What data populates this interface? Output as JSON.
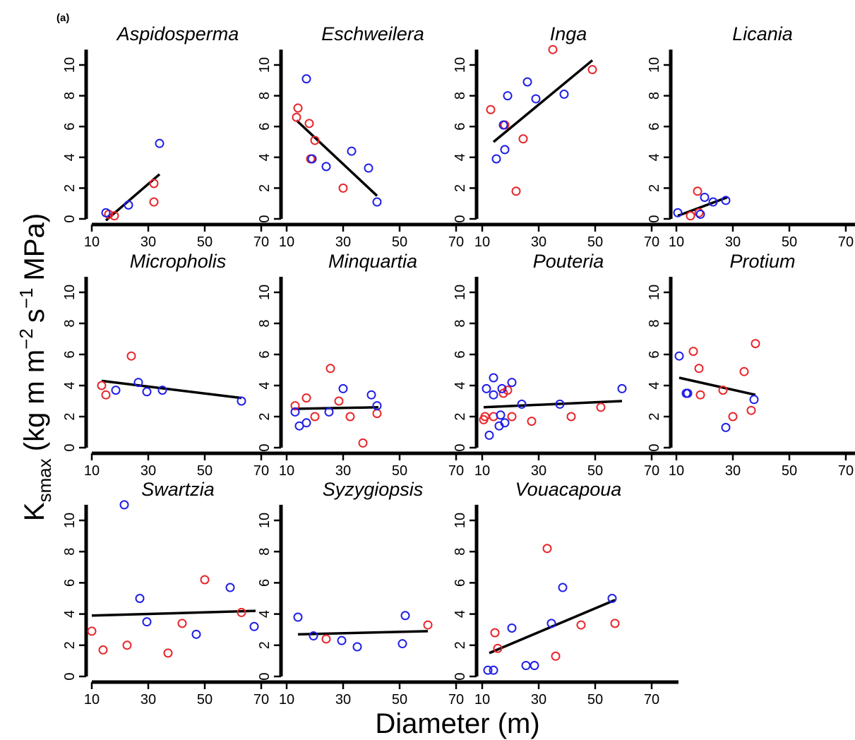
{
  "figure": {
    "panel_tag": "(a)",
    "xlabel": "Diameter (m)",
    "ylabel_main": "K",
    "ylabel_sub": "smax",
    "ylabel_units": "(kg m m",
    "ylabel_sup1": "−2",
    "ylabel_s": "s",
    "ylabel_sup2": "−1",
    "ylabel_tail": "MPa)"
  },
  "colors": {
    "red_series": "#e8262b",
    "blue_series": "#1f1fe6",
    "fit_line": "#000000",
    "axes": "#000000"
  },
  "chart_data": [
    {
      "type": "scatter",
      "title": "Aspidosperma",
      "xlim": [
        10,
        70
      ],
      "ylim": [
        0,
        11
      ],
      "xticks": [
        10,
        30,
        50,
        70
      ],
      "yticks": [
        0,
        2,
        4,
        6,
        8,
        10
      ],
      "series": [
        {
          "color": "red",
          "points": [
            [
              16,
              0.3
            ],
            [
              18,
              0.2
            ],
            [
              32,
              2.3
            ],
            [
              32,
              1.1
            ]
          ]
        },
        {
          "color": "blue",
          "points": [
            [
              15,
              0.4
            ],
            [
              23,
              0.9
            ],
            [
              34,
              4.9
            ]
          ]
        }
      ],
      "fit": [
        [
          15,
          -0.1
        ],
        [
          34,
          2.9
        ]
      ]
    },
    {
      "type": "scatter",
      "title": "Eschweilera",
      "xlim": [
        10,
        70
      ],
      "ylim": [
        0,
        11
      ],
      "xticks": [
        10,
        30,
        50,
        70
      ],
      "yticks": [
        0,
        2,
        4,
        6,
        8,
        10
      ],
      "series": [
        {
          "color": "red",
          "points": [
            [
              13.5,
              6.6
            ],
            [
              14,
              7.2
            ],
            [
              18,
              6.2
            ],
            [
              20,
              5.1
            ],
            [
              18.5,
              3.9
            ],
            [
              30,
              2.0
            ]
          ]
        },
        {
          "color": "blue",
          "points": [
            [
              17,
              9.1
            ],
            [
              19,
              3.9
            ],
            [
              24,
              3.4
            ],
            [
              33,
              4.4
            ],
            [
              39,
              3.3
            ],
            [
              42,
              1.1
            ]
          ]
        }
      ],
      "fit": [
        [
          13.5,
          6.4
        ],
        [
          42,
          1.5
        ]
      ]
    },
    {
      "type": "scatter",
      "title": "Inga",
      "xlim": [
        10,
        70
      ],
      "ylim": [
        0,
        11
      ],
      "xticks": [
        10,
        30,
        50,
        70
      ],
      "yticks": [
        0,
        2,
        4,
        6,
        8,
        10
      ],
      "series": [
        {
          "color": "red",
          "points": [
            [
              13,
              7.1
            ],
            [
              18,
              6.1
            ],
            [
              22,
              1.8
            ],
            [
              24.5,
              5.2
            ],
            [
              35,
              11.0
            ],
            [
              49,
              9.7
            ]
          ]
        },
        {
          "color": "blue",
          "points": [
            [
              15,
              3.9
            ],
            [
              17.5,
              6.1
            ],
            [
              18,
              4.5
            ],
            [
              19,
              8.0
            ],
            [
              26,
              8.9
            ],
            [
              29,
              7.8
            ],
            [
              39,
              8.1
            ]
          ]
        }
      ],
      "fit": [
        [
          14,
          5.0
        ],
        [
          49,
          10.3
        ]
      ]
    },
    {
      "type": "scatter",
      "title": "Licania",
      "xlim": [
        10,
        70
      ],
      "ylim": [
        0,
        11
      ],
      "xticks": [
        10,
        30,
        50,
        70
      ],
      "yticks": [
        0,
        2,
        4,
        6,
        8,
        10
      ],
      "series": [
        {
          "color": "red",
          "points": [
            [
              15,
              0.2
            ],
            [
              17.5,
              1.8
            ],
            [
              18,
              0.4
            ]
          ]
        },
        {
          "color": "blue",
          "points": [
            [
              10.5,
              0.4
            ],
            [
              18.5,
              0.3
            ],
            [
              20,
              1.4
            ],
            [
              23,
              1.1
            ],
            [
              27.5,
              1.2
            ]
          ]
        }
      ],
      "fit": [
        [
          10.5,
          0.2
        ],
        [
          28,
          1.4
        ]
      ]
    },
    {
      "type": "scatter",
      "title": "Micropholis",
      "xlim": [
        10,
        70
      ],
      "ylim": [
        0,
        11
      ],
      "xticks": [
        10,
        30,
        50,
        70
      ],
      "yticks": [
        0,
        2,
        4,
        6,
        8,
        10
      ],
      "series": [
        {
          "color": "red",
          "points": [
            [
              13.5,
              4.0
            ],
            [
              15,
              3.4
            ],
            [
              24,
              5.9
            ]
          ]
        },
        {
          "color": "blue",
          "points": [
            [
              18.5,
              3.7
            ],
            [
              26.5,
              4.2
            ],
            [
              29.5,
              3.6
            ],
            [
              35,
              3.7
            ],
            [
              63,
              3.0
            ]
          ]
        }
      ],
      "fit": [
        [
          13.5,
          4.3
        ],
        [
          63,
          3.2
        ]
      ]
    },
    {
      "type": "scatter",
      "title": "Minquartia",
      "xlim": [
        10,
        70
      ],
      "ylim": [
        0,
        11
      ],
      "xticks": [
        10,
        30,
        50,
        70
      ],
      "yticks": [
        0,
        2,
        4,
        6,
        8,
        10
      ],
      "series": [
        {
          "color": "red",
          "points": [
            [
              13,
              2.7
            ],
            [
              17,
              3.2
            ],
            [
              20,
              2.0
            ],
            [
              25.5,
              5.1
            ],
            [
              28.5,
              3.0
            ],
            [
              32.5,
              2.0
            ],
            [
              37,
              0.3
            ],
            [
              42,
              2.2
            ]
          ]
        },
        {
          "color": "blue",
          "points": [
            [
              13,
              2.3
            ],
            [
              14.5,
              1.4
            ],
            [
              17,
              1.6
            ],
            [
              25,
              2.3
            ],
            [
              30,
              3.8
            ],
            [
              40,
              3.4
            ],
            [
              42,
              2.7
            ]
          ]
        }
      ],
      "fit": [
        [
          12.5,
          2.5
        ],
        [
          42.5,
          2.6
        ]
      ]
    },
    {
      "type": "scatter",
      "title": "Pouteria",
      "xlim": [
        10,
        70
      ],
      "ylim": [
        0,
        11
      ],
      "xticks": [
        10,
        30,
        50,
        70
      ],
      "yticks": [
        0,
        2,
        4,
        6,
        8,
        10
      ],
      "series": [
        {
          "color": "red",
          "points": [
            [
              10.5,
              1.8
            ],
            [
              11,
              2.0
            ],
            [
              14,
              2.0
            ],
            [
              17.5,
              3.5
            ],
            [
              19,
              3.7
            ],
            [
              20.5,
              2.0
            ],
            [
              27.5,
              1.7
            ],
            [
              41.5,
              2.0
            ],
            [
              52,
              2.6
            ]
          ]
        },
        {
          "color": "blue",
          "points": [
            [
              11.5,
              3.8
            ],
            [
              12.5,
              0.8
            ],
            [
              14,
              4.5
            ],
            [
              14,
              3.4
            ],
            [
              16,
              1.4
            ],
            [
              16.5,
              2.1
            ],
            [
              17,
              3.8
            ],
            [
              18,
              1.6
            ],
            [
              20.5,
              4.2
            ],
            [
              24,
              2.8
            ],
            [
              37.5,
              2.8
            ],
            [
              59.5,
              3.8
            ]
          ]
        }
      ],
      "fit": [
        [
          10.5,
          2.6
        ],
        [
          59.5,
          3.0
        ]
      ]
    },
    {
      "type": "scatter",
      "title": "Protium",
      "xlim": [
        10,
        70
      ],
      "ylim": [
        0,
        11
      ],
      "xticks": [
        10,
        30,
        50,
        70
      ],
      "yticks": [
        0,
        2,
        4,
        6,
        8,
        10
      ],
      "series": [
        {
          "color": "red",
          "points": [
            [
              16,
              6.2
            ],
            [
              18,
              5.1
            ],
            [
              18.5,
              3.4
            ],
            [
              26.5,
              3.7
            ],
            [
              30,
              2.0
            ],
            [
              34,
              4.9
            ],
            [
              36.5,
              2.4
            ],
            [
              38,
              6.7
            ]
          ]
        },
        {
          "color": "blue",
          "points": [
            [
              11,
              5.9
            ],
            [
              13.5,
              3.5
            ],
            [
              14,
              3.5
            ],
            [
              27.5,
              1.3
            ],
            [
              37.5,
              3.1
            ]
          ]
        }
      ],
      "fit": [
        [
          11,
          4.5
        ],
        [
          38,
          3.4
        ]
      ]
    },
    {
      "type": "scatter",
      "title": "Swartzia",
      "xlim": [
        10,
        70
      ],
      "ylim": [
        0,
        11
      ],
      "xticks": [
        10,
        30,
        50,
        70
      ],
      "yticks": [
        0,
        2,
        4,
        6,
        8,
        10
      ],
      "series": [
        {
          "color": "red",
          "points": [
            [
              10,
              2.9
            ],
            [
              14,
              1.7
            ],
            [
              22.5,
              2.0
            ],
            [
              37,
              1.5
            ],
            [
              42,
              3.4
            ],
            [
              50,
              6.2
            ],
            [
              63,
              4.1
            ]
          ]
        },
        {
          "color": "blue",
          "points": [
            [
              21.5,
              11.0
            ],
            [
              27,
              5.0
            ],
            [
              29.5,
              3.5
            ],
            [
              47,
              2.7
            ],
            [
              59,
              5.7
            ],
            [
              67.5,
              3.2
            ]
          ]
        }
      ],
      "fit": [
        [
          10,
          3.9
        ],
        [
          68,
          4.2
        ]
      ]
    },
    {
      "type": "scatter",
      "title": "Syzygiopsis",
      "xlim": [
        10,
        70
      ],
      "ylim": [
        0,
        11
      ],
      "xticks": [
        10,
        30,
        50,
        70
      ],
      "yticks": [
        0,
        2,
        4,
        6,
        8,
        10
      ],
      "series": [
        {
          "color": "red",
          "points": [
            [
              24,
              2.4
            ],
            [
              60,
              3.3
            ]
          ]
        },
        {
          "color": "blue",
          "points": [
            [
              14,
              3.8
            ],
            [
              19.5,
              2.6
            ],
            [
              29.5,
              2.3
            ],
            [
              35,
              1.9
            ],
            [
              51,
              2.1
            ],
            [
              52,
              3.9
            ]
          ]
        }
      ],
      "fit": [
        [
          14,
          2.7
        ],
        [
          60,
          2.9
        ]
      ]
    },
    {
      "type": "scatter",
      "title": "Vouacapoua",
      "xlim": [
        10,
        70
      ],
      "ylim": [
        0,
        11
      ],
      "xticks": [
        10,
        30,
        50,
        70
      ],
      "yticks": [
        0,
        2,
        4,
        6,
        8,
        10
      ],
      "series": [
        {
          "color": "red",
          "points": [
            [
              14.5,
              2.8
            ],
            [
              15.5,
              1.8
            ],
            [
              33,
              8.2
            ],
            [
              36,
              1.3
            ],
            [
              45,
              3.3
            ],
            [
              57,
              3.4
            ]
          ]
        },
        {
          "color": "blue",
          "points": [
            [
              12,
              0.4
            ],
            [
              14,
              0.4
            ],
            [
              20.5,
              3.1
            ],
            [
              25.5,
              0.7
            ],
            [
              28.5,
              0.7
            ],
            [
              34.5,
              3.4
            ],
            [
              38.5,
              5.7
            ],
            [
              56,
              5.0
            ]
          ]
        }
      ],
      "fit": [
        [
          12.5,
          1.5
        ],
        [
          57,
          4.9
        ]
      ]
    }
  ]
}
